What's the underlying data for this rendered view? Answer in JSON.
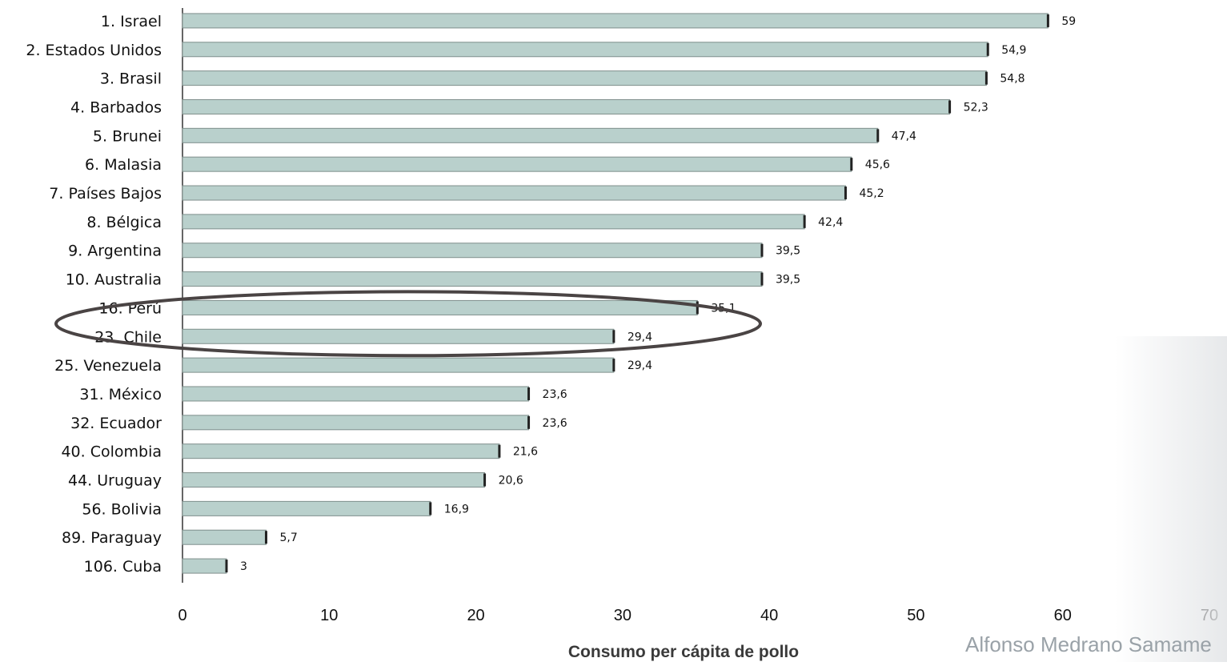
{
  "chart_data": {
    "type": "bar",
    "orientation": "horizontal",
    "categories": [
      "1. Israel",
      "2. Estados Unidos",
      "3. Brasil",
      "4. Barbados",
      "5. Brunei",
      "6. Malasia",
      "7. Países Bajos",
      "8. Bélgica",
      "9. Argentina",
      "10. Australia",
      "16. Perú",
      "23. Chile",
      "25. Venezuela",
      "31. México",
      "32. Ecuador",
      "40. Colombia",
      "44. Uruguay",
      "56. Bolivia",
      "89. Paraguay",
      "106. Cuba"
    ],
    "values": [
      59,
      54.9,
      54.8,
      52.3,
      47.4,
      45.6,
      45.2,
      42.4,
      39.5,
      39.5,
      35.1,
      29.4,
      29.4,
      23.6,
      23.6,
      21.6,
      20.6,
      16.9,
      5.7,
      3
    ],
    "value_labels": [
      "59",
      "54,9",
      "54,8",
      "52,3",
      "47,4",
      "45,6",
      "45,2",
      "42,4",
      "39,5",
      "39,5",
      "35,1",
      "29,4",
      "29,4",
      "23,6",
      "23,6",
      "21,6",
      "20,6",
      "16,9",
      "5,7",
      "3"
    ],
    "xlim": [
      0,
      70
    ],
    "xticks": [
      "0",
      "10",
      "20",
      "30",
      "40",
      "50",
      "60",
      "70"
    ],
    "xlabel": "Consumo per cápita de pollo",
    "ylabel": "",
    "title": "",
    "grid": false,
    "legend": "none",
    "bar_color": "#b9d0cc",
    "bar_edge_color": "#7f8f8c",
    "highlight": {
      "categories": [
        "16. Perú",
        "23. Chile"
      ],
      "shape": "ellipse",
      "color": "#4a4444"
    }
  },
  "watermark": "Alfonso Medrano Samame"
}
